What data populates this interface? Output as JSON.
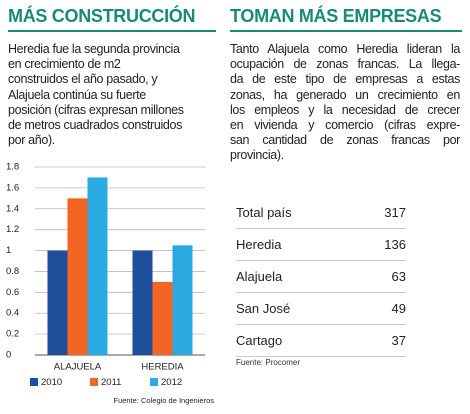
{
  "chart_data": {
    "type": "bar",
    "title": "MÁS CONSTRUCCIÓN",
    "text": [
      "Heredia fue la segunda provincia",
      "en crecimiento de m2",
      "construidos el año pasado, y",
      "Alajuela continúa su fuerte",
      "posición (cifras expresan millones",
      "de metros cuadrados construidos",
      "por año)."
    ],
    "categories": [
      "ALAJUELA",
      "HEREDIA"
    ],
    "series": [
      {
        "name": "2010",
        "color": "#1f4e9a",
        "values": [
          1.0,
          1.0
        ]
      },
      {
        "name": "2011",
        "color": "#f26522",
        "values": [
          1.5,
          0.7
        ]
      },
      {
        "name": "2012",
        "color": "#29abe2",
        "values": [
          1.7,
          1.05
        ]
      }
    ],
    "ylim": [
      0,
      1.8
    ],
    "yticks": [
      0,
      0.2,
      0.4,
      0.6,
      0.8,
      1,
      1.2,
      1.4,
      1.6,
      1.8
    ],
    "grid": true,
    "source": "Fuente: Colegio de Ingenieros"
  },
  "table": {
    "title": "TOMAN MÁS EMPRESAS",
    "text": [
      "Tanto Alajuela como Heredia lideran la",
      "ocupación de zonas francas. La llega-",
      "da de este tipo de empresas a estas",
      "zonas, ha generado un crecimiento en",
      "los empleos y la necesidad de crecer",
      "en vivienda y comercio (cifras expre-",
      "san cantidad de zonas francas por",
      "provincia)."
    ],
    "rows": [
      [
        "Total país",
        "317"
      ],
      [
        "Heredia",
        "136"
      ],
      [
        "Alajuela",
        "63"
      ],
      [
        "San José",
        "49"
      ],
      [
        "Cartago",
        "37"
      ]
    ],
    "source": "Fuente: Procomer"
  }
}
